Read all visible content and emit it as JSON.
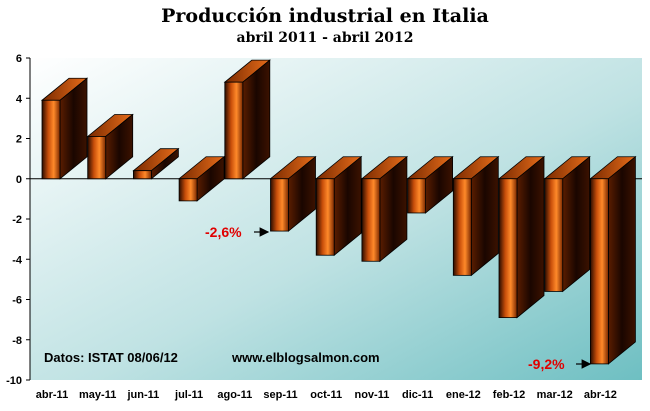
{
  "chart_data": {
    "type": "bar",
    "title": "Producción industrial en Italia",
    "subtitle": "abril 2011 - abril 2012",
    "categories": [
      "abr-11",
      "may-11",
      "jun-11",
      "jul-11",
      "ago-11",
      "sep-11",
      "oct-11",
      "nov-11",
      "dic-11",
      "ene-12",
      "feb-12",
      "mar-12",
      "abr-12"
    ],
    "values": [
      3.9,
      2.1,
      0.4,
      -1.1,
      4.8,
      -2.6,
      -3.8,
      -4.1,
      -1.7,
      -4.8,
      -6.9,
      -5.6,
      -9.2
    ],
    "ylim": [
      -10,
      6
    ],
    "yticks": [
      "-10",
      "-8",
      "-6",
      "-4",
      "-2",
      "0",
      "2",
      "4",
      "6"
    ],
    "grid": false,
    "bar_color": "#c8500a",
    "background_gradient": [
      "#ffffff",
      "#7fc4c6"
    ],
    "annotations": {
      "source": "Datos: ISTAT 08/06/12",
      "website": "www.elblogsalmon.com",
      "callout_sep": "-2,6%",
      "callout_abr": "-9,2%"
    }
  }
}
